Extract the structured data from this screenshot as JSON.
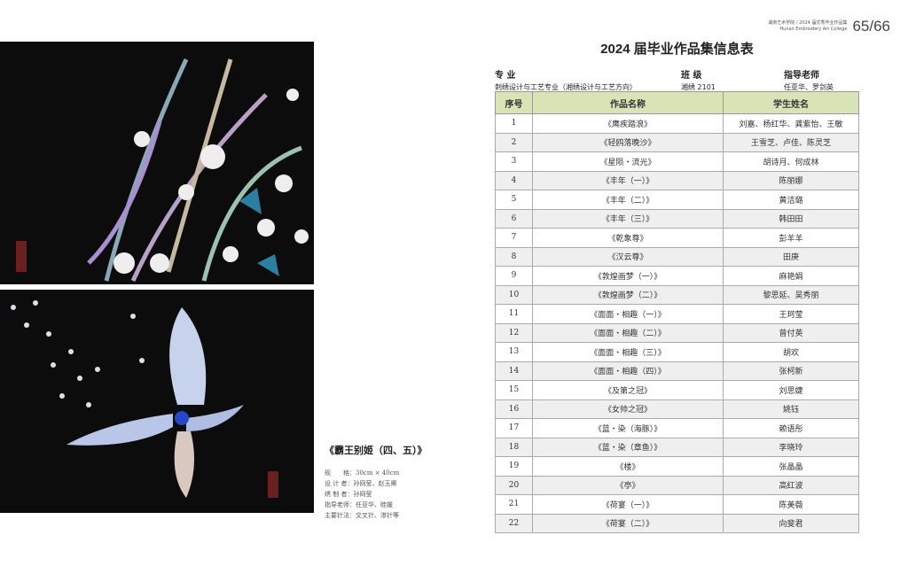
{
  "header": {
    "book": "湖南艺术学院 / 2024 届优秀毕业作品集",
    "college": "Hunan Embroidery Art College",
    "page": "65/66"
  },
  "title": "2024 届毕业作品集信息表",
  "meta": {
    "major_label": "专 业",
    "major": "刺绣设计与工艺专业（湘绣设计与工艺方向）",
    "class_label": "班 级",
    "class": "湘绣 2101",
    "teacher_label": "指导老师",
    "teacher": "任亚华、罗剑英"
  },
  "table": {
    "headers": [
      "序号",
      "作品名称",
      "学生姓名"
    ],
    "rows": [
      [
        "1",
        "《鹰疾踏浪》",
        "刘嘉、杨红华、龚紫怡、王敏"
      ],
      [
        "2",
        "《轻鸥落晚沙》",
        "王雪芝、卢佳、陈灵芝"
      ],
      [
        "3",
        "《星陨・流光》",
        "胡诗月、何成林"
      ],
      [
        "4",
        "《丰年（一）》",
        "陈丽娜"
      ],
      [
        "5",
        "《丰年（二）》",
        "黄洁璐"
      ],
      [
        "6",
        "《丰年（三）》",
        "韩田田"
      ],
      [
        "7",
        "《乾象尊》",
        "彭羊羊"
      ],
      [
        "8",
        "《汉云尊》",
        "田庚"
      ],
      [
        "9",
        "《敦煌画梦（一）》",
        "麻艳娟"
      ],
      [
        "10",
        "《敦煌画梦（二）》",
        "黎思延、吴秀丽"
      ],
      [
        "11",
        "《面面・相趣（一）》",
        "王珂莹"
      ],
      [
        "12",
        "《面面・相趣（二）》",
        "曾付英"
      ],
      [
        "13",
        "《面面・相趣（三）》",
        "胡欢"
      ],
      [
        "14",
        "《面面・相趣（四）》",
        "张柯新"
      ],
      [
        "15",
        "《及第之冠》",
        "刘思婕"
      ],
      [
        "16",
        "《女帅之冠》",
        "姚钰"
      ],
      [
        "17",
        "《蓝・染（海豚）》",
        "赖语彤"
      ],
      [
        "18",
        "《蓝・染（章鱼）》",
        "李晓玲"
      ],
      [
        "19",
        "《楼》",
        "张晶晶"
      ],
      [
        "20",
        "《亭》",
        "高红波"
      ],
      [
        "21",
        "《荷宴（一）》",
        "陈美薇"
      ],
      [
        "22",
        "《荷宴（二）》",
        "向斐君"
      ]
    ]
  },
  "caption": {
    "title": "《霸王别姬（四、五）》",
    "lines": [
      "规　　格：30cm × 40cm",
      "设 计 者：孙冏莹、赵玉卿",
      "绣 制 者：孙冏莹",
      "指导老师：任亚华、眭媛",
      "主要针法：交叉针、渗针等"
    ]
  }
}
